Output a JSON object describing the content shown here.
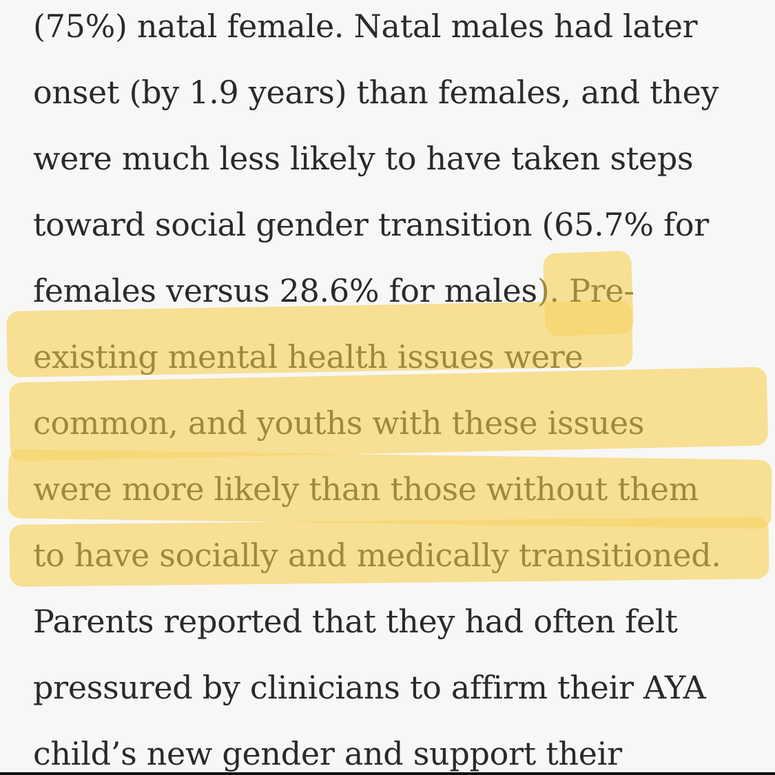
{
  "article": {
    "lines": [
      "(75%) natal female. Natal males had later",
      "onset (by 1.9 years) than females, and they",
      "were much less likely to have taken steps",
      "toward social gender transition (65.7% for",
      "females versus 28.6% for males",
      "). Pre-",
      "existing mental health issues were",
      "common, and youths with these issues",
      "were more likely than those without them",
      "to have socially and medically transitioned.",
      "Parents reported that they had often felt",
      "pressured by clinicians to affirm their AYA",
      "child’s new gender and support their"
    ]
  },
  "highlight": {
    "color": "#f7d56c",
    "text_color": "#9c8a3e"
  }
}
